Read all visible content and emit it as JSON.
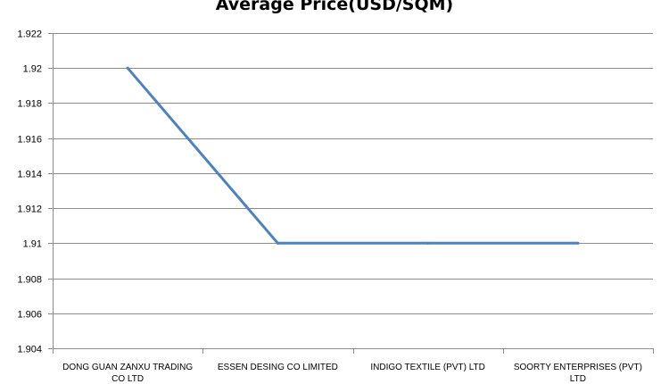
{
  "chart_data": {
    "type": "line",
    "title": "Average Price(USD/SQM)",
    "xlabel": "",
    "ylabel": "",
    "categories": [
      [
        "DONG GUAN ZANXU TRADING",
        "CO LTD"
      ],
      [
        "ESSEN DESING  CO LIMITED"
      ],
      [
        "INDIGO TEXTILE  (PVT)  LTD"
      ],
      [
        "SOORTY ENTERPRISES  (PVT)",
        "LTD"
      ]
    ],
    "series": [
      {
        "values": [
          1.92,
          1.91,
          1.91,
          1.91
        ]
      }
    ],
    "ylim": [
      1.904,
      1.922
    ],
    "yticks": [
      "1.904",
      "1.906",
      "1.908",
      "1.91",
      "1.912",
      "1.914",
      "1.916",
      "1.918",
      "1.92",
      "1.922"
    ],
    "grid": true,
    "legend": "none",
    "line_color": "#4f81bd",
    "grid_color": "#8c8c8c"
  }
}
